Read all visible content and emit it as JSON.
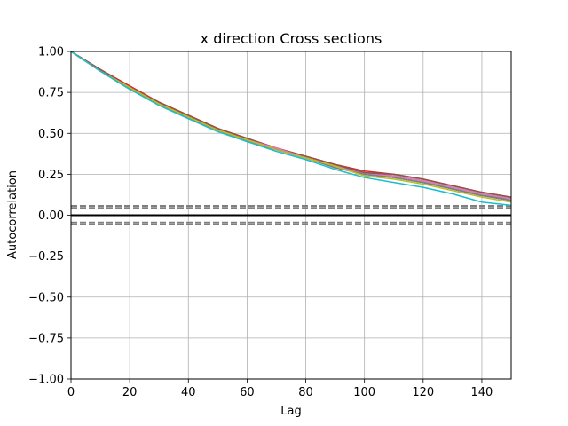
{
  "chart_data": {
    "type": "line",
    "title": "x direction Cross sections",
    "xlabel": "Lag",
    "ylabel": "Autocorrelation",
    "xlim": [
      0,
      150
    ],
    "ylim": [
      -1.0,
      1.0
    ],
    "grid": true,
    "xticks": [
      0,
      20,
      40,
      60,
      80,
      100,
      120,
      140
    ],
    "xtick_labels": [
      "0",
      "20",
      "40",
      "60",
      "80",
      "100",
      "120",
      "140"
    ],
    "yticks": [
      -1.0,
      -0.75,
      -0.5,
      -0.25,
      0.0,
      0.25,
      0.5,
      0.75,
      1.0
    ],
    "ytick_labels": [
      "−1.00",
      "−0.75",
      "−0.50",
      "−0.25",
      "0.00",
      "0.25",
      "0.50",
      "0.75",
      "1.00"
    ],
    "reference_lines": {
      "zero": 0.0,
      "solid_bounds": [
        0.0,
        0.0
      ],
      "dashed_bounds": [
        0.057,
        -0.057
      ],
      "dashed_inner_bounds": [
        0.045,
        -0.045
      ]
    },
    "x": [
      0,
      10,
      20,
      30,
      40,
      50,
      60,
      70,
      80,
      90,
      100,
      110,
      120,
      130,
      140,
      150
    ],
    "series": [
      {
        "color": "#1f77b4",
        "values": [
          1.0,
          0.88,
          0.78,
          0.68,
          0.6,
          0.52,
          0.46,
          0.4,
          0.35,
          0.3,
          0.25,
          0.23,
          0.2,
          0.16,
          0.12,
          0.09
        ]
      },
      {
        "color": "#ff7f0e",
        "values": [
          1.0,
          0.89,
          0.78,
          0.69,
          0.61,
          0.53,
          0.46,
          0.41,
          0.36,
          0.31,
          0.26,
          0.24,
          0.21,
          0.17,
          0.13,
          0.1
        ]
      },
      {
        "color": "#2ca02c",
        "values": [
          1.0,
          0.88,
          0.77,
          0.68,
          0.6,
          0.52,
          0.45,
          0.4,
          0.35,
          0.3,
          0.25,
          0.23,
          0.2,
          0.16,
          0.12,
          0.1
        ]
      },
      {
        "color": "#d62728",
        "values": [
          1.0,
          0.89,
          0.79,
          0.69,
          0.61,
          0.53,
          0.47,
          0.41,
          0.36,
          0.31,
          0.27,
          0.25,
          0.22,
          0.18,
          0.14,
          0.11
        ]
      },
      {
        "color": "#9467bd",
        "values": [
          1.0,
          0.88,
          0.78,
          0.68,
          0.6,
          0.52,
          0.46,
          0.4,
          0.35,
          0.3,
          0.26,
          0.24,
          0.21,
          0.17,
          0.13,
          0.1
        ]
      },
      {
        "color": "#8c564b",
        "values": [
          1.0,
          0.89,
          0.78,
          0.69,
          0.61,
          0.53,
          0.47,
          0.41,
          0.36,
          0.31,
          0.26,
          0.25,
          0.22,
          0.18,
          0.14,
          0.11
        ]
      },
      {
        "color": "#e377c2",
        "values": [
          1.0,
          0.88,
          0.78,
          0.68,
          0.6,
          0.52,
          0.46,
          0.41,
          0.35,
          0.3,
          0.25,
          0.24,
          0.21,
          0.17,
          0.13,
          0.1
        ]
      },
      {
        "color": "#7f7f7f",
        "values": [
          1.0,
          0.88,
          0.77,
          0.68,
          0.59,
          0.52,
          0.45,
          0.4,
          0.35,
          0.29,
          0.25,
          0.23,
          0.2,
          0.16,
          0.12,
          0.09
        ]
      },
      {
        "color": "#bcbd22",
        "values": [
          1.0,
          0.88,
          0.78,
          0.68,
          0.6,
          0.52,
          0.46,
          0.4,
          0.35,
          0.3,
          0.24,
          0.22,
          0.19,
          0.15,
          0.11,
          0.08
        ]
      },
      {
        "color": "#17becf",
        "values": [
          1.0,
          0.88,
          0.77,
          0.67,
          0.59,
          0.51,
          0.45,
          0.39,
          0.34,
          0.28,
          0.23,
          0.2,
          0.17,
          0.13,
          0.08,
          0.06
        ]
      }
    ]
  }
}
